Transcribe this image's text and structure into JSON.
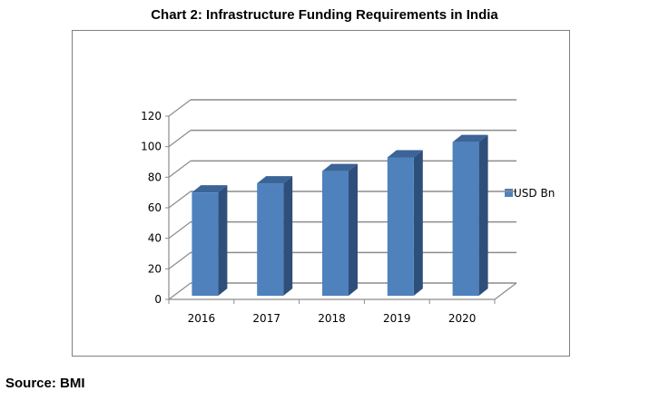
{
  "title": "Chart 2: Infrastructure Funding Requirements in India",
  "source": "Source: BMI",
  "chart_data": {
    "type": "bar",
    "style": "3d-clustered-column",
    "title": "Chart 2: Infrastructure Funding Requirements in India",
    "xlabel": "",
    "ylabel": "",
    "categories": [
      "2016",
      "2017",
      "2018",
      "2019",
      "2020"
    ],
    "series": [
      {
        "name": "USD Bn",
        "values": [
          70,
          76,
          84,
          93,
          103
        ],
        "color": "#4F81BD",
        "side_color": "#2F4F7B",
        "top_color": "#3B6497"
      }
    ],
    "ylim": [
      0,
      120
    ],
    "yticks": [
      0,
      20,
      40,
      60,
      80,
      100,
      120
    ],
    "ytick_labels": [
      "0",
      "20",
      "40",
      "60",
      "80",
      "100",
      "120"
    ],
    "grid": true,
    "legend": {
      "position": "right",
      "entries": [
        "USD Bn"
      ]
    }
  }
}
